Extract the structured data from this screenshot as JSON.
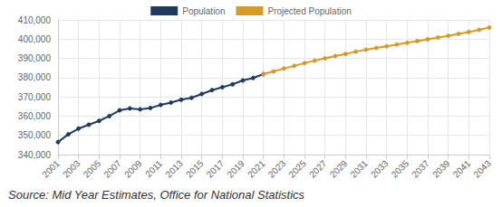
{
  "chart_data": {
    "type": "line",
    "source": "Source: Mid Year Estimates, Office for National Statistics",
    "x": [
      2001,
      2002,
      2003,
      2004,
      2005,
      2006,
      2007,
      2008,
      2009,
      2010,
      2011,
      2012,
      2013,
      2014,
      2015,
      2016,
      2017,
      2018,
      2019,
      2020,
      2021,
      2022,
      2023,
      2024,
      2025,
      2026,
      2027,
      2028,
      2029,
      2030,
      2031,
      2032,
      2033,
      2034,
      2035,
      2036,
      2037,
      2038,
      2039,
      2040,
      2041,
      2042,
      2043
    ],
    "series": [
      {
        "name": "Population",
        "color": "#1f3a5f",
        "marker": "circle",
        "line_style": "solid",
        "values": [
          346500,
          350500,
          353500,
          355500,
          357500,
          360000,
          363000,
          364000,
          363500,
          364200,
          365800,
          367000,
          368500,
          369500,
          371500,
          373500,
          375000,
          376500,
          378500,
          379800,
          381800,
          null,
          null,
          null,
          null,
          null,
          null,
          null,
          null,
          null,
          null,
          null,
          null,
          null,
          null,
          null,
          null,
          null,
          null,
          null,
          null,
          null,
          null
        ]
      },
      {
        "name": "Projected Population",
        "color": "#d49a2a",
        "marker": "circle",
        "line_style": "solid",
        "values": [
          null,
          null,
          null,
          null,
          null,
          null,
          null,
          null,
          null,
          null,
          null,
          null,
          null,
          null,
          null,
          null,
          null,
          null,
          null,
          null,
          381800,
          383200,
          384700,
          386100,
          387500,
          388800,
          390000,
          391200,
          392300,
          393500,
          394500,
          395400,
          396300,
          397200,
          398100,
          399000,
          399900,
          400800,
          401700,
          402700,
          403700,
          404800,
          406000
        ]
      }
    ],
    "xlim": [
      2001,
      2043
    ],
    "xticks": [
      2001,
      2003,
      2005,
      2007,
      2009,
      2011,
      2013,
      2015,
      2017,
      2019,
      2021,
      2023,
      2025,
      2027,
      2029,
      2031,
      2033,
      2035,
      2037,
      2039,
      2041,
      2043
    ],
    "ylim": [
      340000,
      410000
    ],
    "yticks": [
      {
        "value": 340000,
        "label": "340,000"
      },
      {
        "value": 350000,
        "label": "350,000"
      },
      {
        "value": 360000,
        "label": "360,000"
      },
      {
        "value": 370000,
        "label": "370,000"
      },
      {
        "value": 380000,
        "label": "380,000"
      },
      {
        "value": 390000,
        "label": "390,000"
      },
      {
        "value": 400000,
        "label": "400,000"
      },
      {
        "value": 410000,
        "label": "410,000"
      }
    ],
    "grid": true,
    "legend": "top"
  }
}
